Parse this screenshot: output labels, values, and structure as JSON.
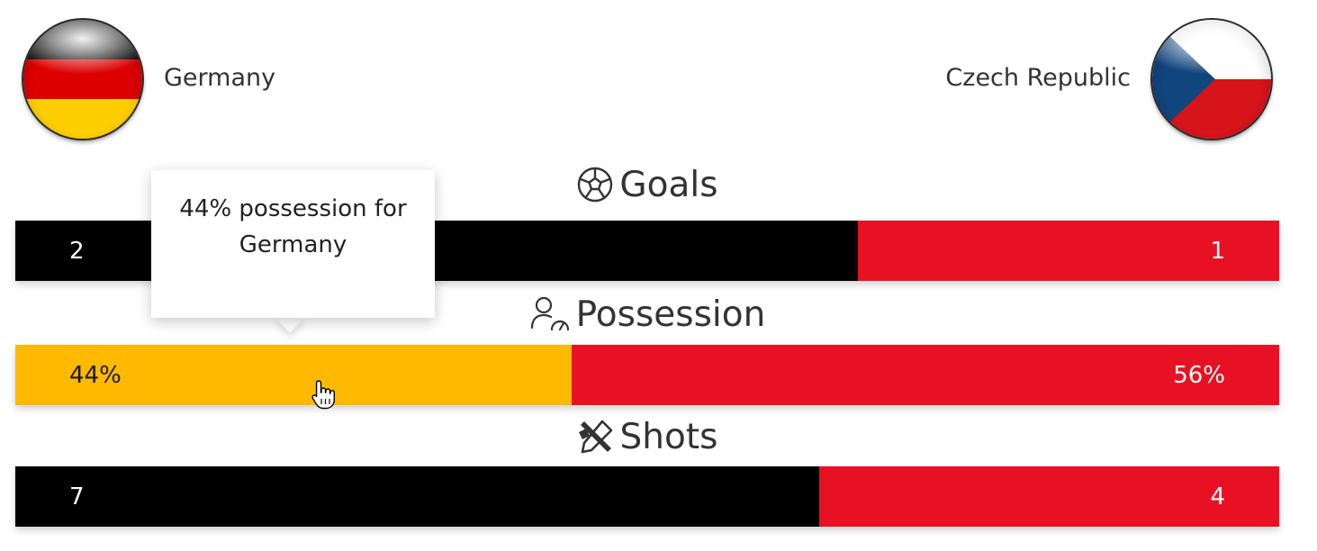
{
  "teams": {
    "home": {
      "name": "Germany",
      "flag_icon": "germany-flag-icon"
    },
    "away": {
      "name": "Czech Republic",
      "flag_icon": "czech-republic-flag-icon"
    }
  },
  "colors": {
    "home": "#000000",
    "away": "#e81123",
    "highlight": "#ffb900"
  },
  "stats": [
    {
      "id": "goals",
      "title": "Goals",
      "icon": "soccer-ball-icon",
      "home_value": 2,
      "away_value": 1,
      "home_label": "2",
      "away_label": "1",
      "home_share": 0.667
    },
    {
      "id": "possession",
      "title": "Possession",
      "icon": "person-gauge-icon",
      "home_value": 44,
      "away_value": 56,
      "home_label": "44%",
      "away_label": "56%",
      "home_share": 0.44,
      "highlighted": true
    },
    {
      "id": "shots",
      "title": "Shots",
      "icon": "crossed-tools-icon",
      "home_value": 7,
      "away_value": 4,
      "home_label": "7",
      "away_label": "4",
      "home_share": 0.636
    }
  ],
  "tooltip": {
    "text": "44% possession for Germany"
  }
}
